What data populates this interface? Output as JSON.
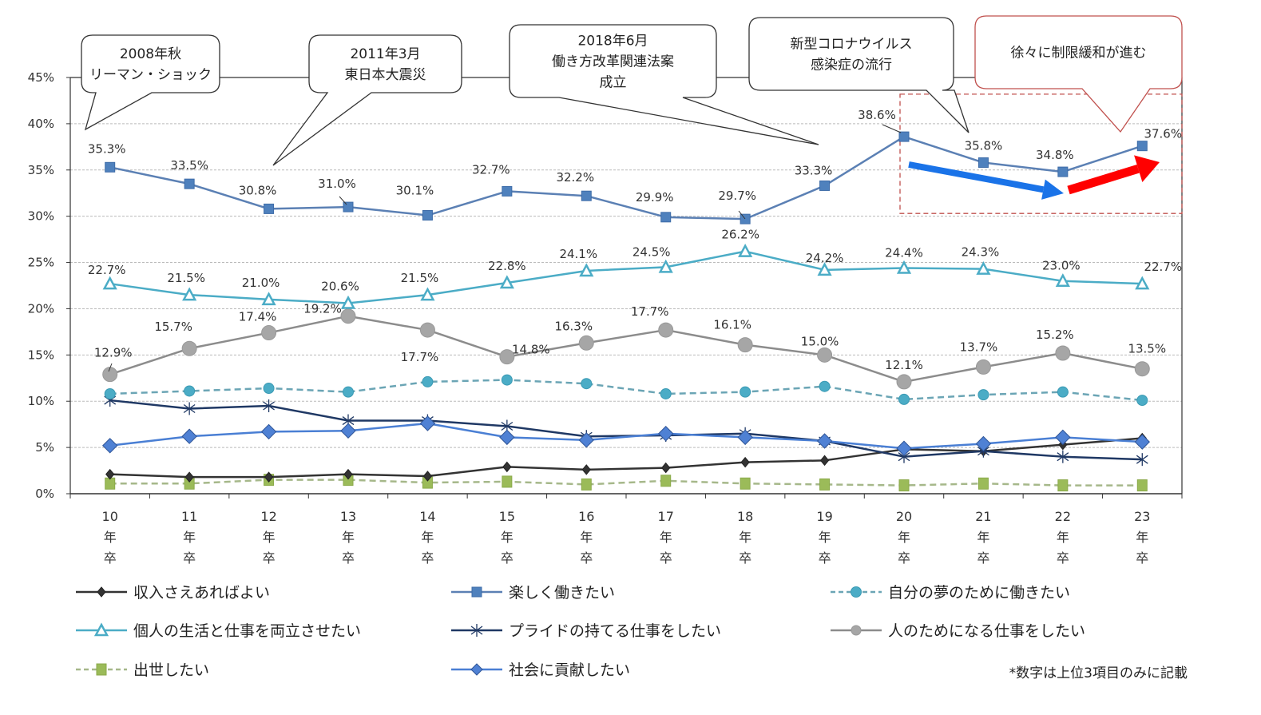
{
  "chart_data": {
    "type": "line",
    "title": "",
    "xlabel": "",
    "ylabel": "",
    "ylim": [
      0,
      45
    ],
    "yticks": [
      0,
      5,
      10,
      15,
      20,
      25,
      30,
      35,
      40,
      45
    ],
    "ytick_labels": [
      "0%",
      "5%",
      "10%",
      "15%",
      "20%",
      "25%",
      "30%",
      "35%",
      "40%",
      "45%"
    ],
    "grid": true,
    "categories": [
      "10年卒",
      "11年卒",
      "12年卒",
      "13年卒",
      "14年卒",
      "15年卒",
      "16年卒",
      "17年卒",
      "18年卒",
      "19年卒",
      "20年卒",
      "21年卒",
      "22年卒",
      "23年卒"
    ],
    "category_parts": [
      [
        "10",
        "年",
        "卒"
      ],
      [
        "11",
        "年",
        "卒"
      ],
      [
        "12",
        "年",
        "卒"
      ],
      [
        "13",
        "年",
        "卒"
      ],
      [
        "14",
        "年",
        "卒"
      ],
      [
        "15",
        "年",
        "卒"
      ],
      [
        "16",
        "年",
        "卒"
      ],
      [
        "17",
        "年",
        "卒"
      ],
      [
        "18",
        "年",
        "卒"
      ],
      [
        "19",
        "年",
        "卒"
      ],
      [
        "20",
        "年",
        "卒"
      ],
      [
        "21",
        "年",
        "卒"
      ],
      [
        "22",
        "年",
        "卒"
      ],
      [
        "23",
        "年",
        "卒"
      ]
    ],
    "series": [
      {
        "name": "収入さえあればよい",
        "color": "#333333",
        "marker": "diamond",
        "dashed": false,
        "labeled": false,
        "values": [
          2.1,
          1.8,
          1.8,
          2.1,
          1.9,
          2.9,
          2.6,
          2.8,
          3.4,
          3.6,
          4.8,
          4.6,
          5.3,
          6.0
        ]
      },
      {
        "name": "楽しく働きたい",
        "color": "#5B80B4",
        "marker": "square",
        "dashed": false,
        "labeled": true,
        "values": [
          35.3,
          33.5,
          30.8,
          31.0,
          30.1,
          32.7,
          32.2,
          29.9,
          29.7,
          33.3,
          38.6,
          35.8,
          34.8,
          37.6
        ]
      },
      {
        "name": "自分の夢のために働きたい",
        "color": "#4BACC6",
        "marker": "circle-small",
        "dashed": true,
        "labeled": false,
        "values": [
          10.8,
          11.1,
          11.4,
          11.0,
          12.1,
          12.3,
          11.9,
          10.8,
          11.0,
          11.6,
          10.2,
          10.7,
          11.0,
          10.1
        ]
      },
      {
        "name": "個人の生活と仕事を両立させたい",
        "color": "#4BACC6",
        "marker": "triangle-open",
        "dashed": false,
        "labeled": true,
        "values": [
          22.7,
          21.5,
          21.0,
          20.6,
          21.5,
          22.8,
          24.1,
          24.5,
          26.2,
          24.2,
          24.4,
          24.3,
          23.0,
          22.7
        ]
      },
      {
        "name": "プライドの持てる仕事をしたい",
        "color": "#1F3864",
        "marker": "star",
        "dashed": false,
        "labeled": false,
        "values": [
          10.1,
          9.2,
          9.5,
          7.9,
          7.9,
          7.3,
          6.2,
          6.3,
          6.5,
          5.7,
          4.0,
          4.6,
          4.0,
          3.7
        ]
      },
      {
        "name": "人のためになる仕事をしたい",
        "color": "#8C8C8C",
        "marker": "circle",
        "dashed": false,
        "labeled": true,
        "values": [
          12.9,
          15.7,
          17.4,
          19.2,
          17.7,
          14.8,
          16.3,
          17.7,
          16.1,
          15.0,
          12.1,
          13.7,
          15.2,
          13.5
        ]
      },
      {
        "name": "出世したい",
        "color": "#9BBB59",
        "marker": "square-green",
        "dashed": true,
        "labeled": false,
        "values": [
          1.1,
          1.1,
          1.5,
          1.5,
          1.2,
          1.3,
          1.0,
          1.4,
          1.1,
          1.0,
          0.9,
          1.1,
          0.9,
          0.9
        ]
      },
      {
        "name": "社会に貢献したい",
        "color": "#4A7FD4",
        "marker": "diamond-blue",
        "dashed": false,
        "labeled": false,
        "values": [
          5.2,
          6.2,
          6.7,
          6.8,
          7.6,
          6.1,
          5.8,
          6.5,
          6.1,
          5.7,
          4.9,
          5.4,
          6.1,
          5.6
        ]
      }
    ],
    "data_label_texts": {
      "楽しく働きたい": [
        "35.3%",
        "33.5%",
        "30.8%",
        "31.0%",
        "30.1%",
        "32.7%",
        "32.2%",
        "29.9%",
        "29.7%",
        "33.3%",
        "38.6%",
        "35.8%",
        "34.8%",
        "37.6%"
      ],
      "個人の生活と仕事を両立させたい": [
        "22.7%",
        "21.5%",
        "21.0%",
        "20.6%",
        "21.5%",
        "22.8%",
        "24.1%",
        "24.5%",
        "26.2%",
        "24.2%",
        "24.4%",
        "24.3%",
        "23.0%",
        "22.7%"
      ],
      "人のためになる仕事をしたい": [
        "12.9%",
        "15.7%",
        "17.4%",
        "19.2%",
        "17.7%",
        "14.8%",
        "16.3%",
        "17.7%",
        "16.1%",
        "15.0%",
        "12.1%",
        "13.7%",
        "15.2%",
        "13.5%"
      ]
    },
    "annotations": [
      {
        "lines": [
          "2008年秋",
          "リーマン・ショック"
        ],
        "points_to": "10年卒",
        "border": "#333333"
      },
      {
        "lines": [
          "2011年3月",
          "東日本大震災"
        ],
        "points_to": "12年卒",
        "border": "#333333"
      },
      {
        "lines": [
          "2018年6月",
          "働き方改革関連法案",
          "成立"
        ],
        "points_to": "19年卒",
        "border": "#333333"
      },
      {
        "lines": [
          "新型コロナウイルス",
          "感染症の流行"
        ],
        "points_to": "21年卒",
        "border": "#333333"
      },
      {
        "lines": [
          "徐々に制限緩和が進む"
        ],
        "points_to": "22年卒",
        "border": "#C0504D"
      }
    ],
    "trend_arrows": [
      {
        "direction": "down",
        "from": "20年卒",
        "to": "22年卒",
        "color": "#1A73E8"
      },
      {
        "direction": "up",
        "from": "22年卒",
        "to": "23年卒",
        "color": "#FF0000"
      }
    ],
    "highlight_region": {
      "from": "20年卒",
      "to": "23年卒",
      "border": "#C0504D",
      "style": "dashed"
    },
    "legend_placement": "bottom",
    "note": "*数字は上位3項目のみに記載"
  }
}
